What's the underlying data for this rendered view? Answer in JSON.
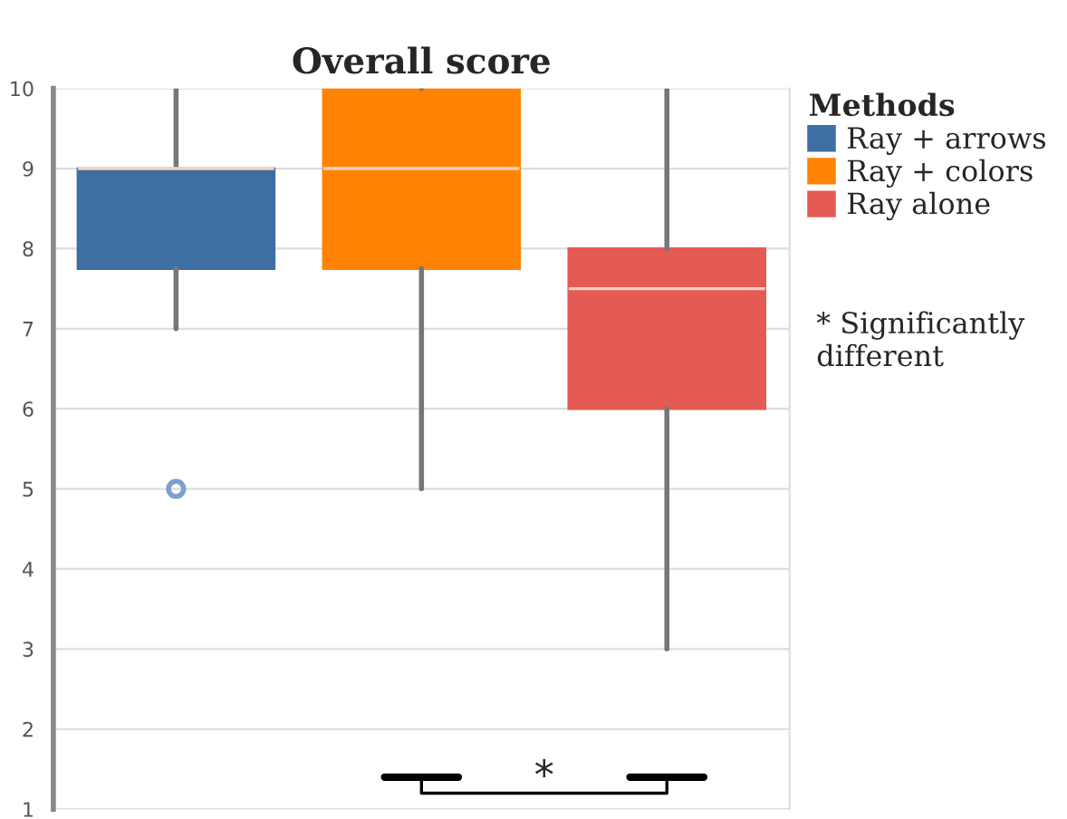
{
  "chart_data": {
    "type": "box",
    "title": "Overall score",
    "legend_title": "Methods",
    "categories": [
      null,
      null,
      null
    ],
    "series": [
      {
        "name": "Ray + arrows",
        "color": "#3d6fa3",
        "boxes": [
          {
            "low": 7,
            "q1": 7.75,
            "median": 9,
            "q3": 9,
            "high": 10,
            "outliers": [
              5
            ]
          },
          null,
          null
        ]
      },
      {
        "name": "Ray + colors",
        "color": "#ff8300",
        "boxes": [
          null,
          {
            "low": 5,
            "q1": 7.75,
            "median": 9,
            "q3": 10,
            "high": 10
          },
          null
        ]
      },
      {
        "name": "Ray alone",
        "color": "#e65a55",
        "boxes": [
          null,
          null,
          {
            "low": 3,
            "q1": 6,
            "median": 7.5,
            "q3": 8,
            "high": 10
          }
        ]
      }
    ],
    "ylim": [
      1,
      10
    ],
    "yticks": [
      1,
      2,
      3,
      4,
      5,
      6,
      7,
      8,
      9,
      10
    ],
    "grid": "y",
    "legend": "top right",
    "annotations": [
      "*",
      "* Significantly different"
    ]
  }
}
